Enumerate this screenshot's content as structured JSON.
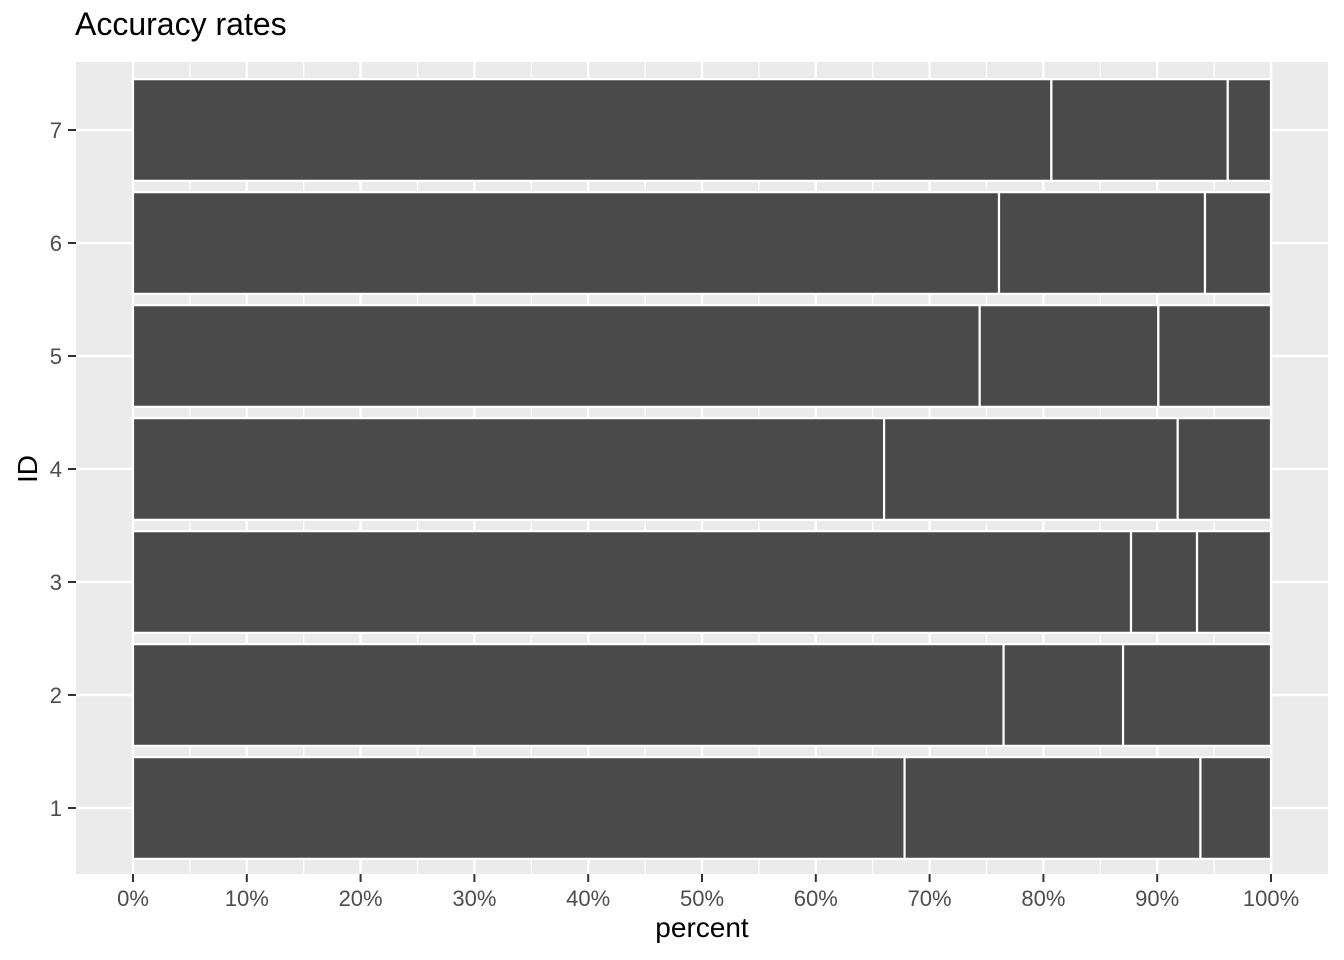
{
  "chart_data": {
    "type": "bar",
    "orientation": "horizontal",
    "stacked": true,
    "position": "fill",
    "title": "Accuracy rates",
    "xlabel": "percent",
    "ylabel": "ID",
    "categories": [
      "1",
      "2",
      "3",
      "4",
      "5",
      "6",
      "7"
    ],
    "xlim": [
      0,
      100
    ],
    "x_ticks": [
      "0%",
      "10%",
      "20%",
      "30%",
      "40%",
      "50%",
      "60%",
      "70%",
      "80%",
      "90%",
      "100%"
    ],
    "series": [
      {
        "values": [
          67.8,
          76.5,
          87.7,
          66.0,
          74.4,
          76.1,
          80.7
        ]
      },
      {
        "values": [
          26.0,
          10.5,
          5.8,
          25.8,
          15.7,
          18.1,
          15.5
        ]
      },
      {
        "values": [
          6.2,
          13.0,
          6.5,
          8.2,
          9.9,
          5.8,
          3.8
        ]
      }
    ],
    "colors": {
      "panel": "#EBEBEB",
      "grid": "#FFFFFF",
      "bar_fill": "#4A4A4A",
      "bar_outline": "#FFFFFF",
      "tick_text": "#4D4D4D"
    },
    "grid": true,
    "legend": "none"
  }
}
